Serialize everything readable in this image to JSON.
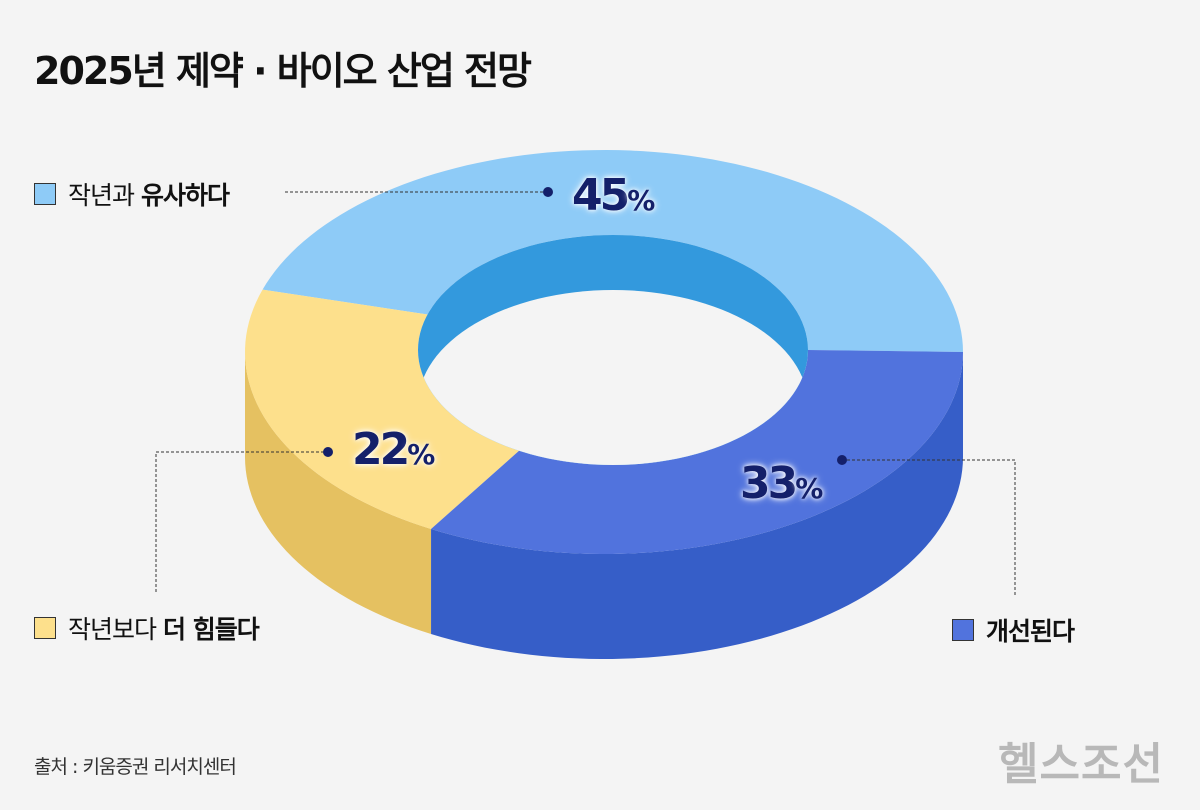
{
  "title": "2025년 제약 · 바이오 산업 전망",
  "source": "출처 : 키움증권 리서치센터",
  "logo_text": "헬스조선",
  "chart_data": {
    "type": "pie",
    "style": "3d-donut",
    "title": "2025년 제약 · 바이오 산업 전망",
    "slices": [
      {
        "label_plain": "작년과",
        "label_bold": "유사하다",
        "value": 45,
        "display": "45",
        "color": "#8ecbf7",
        "side_color": "#5aa8e0"
      },
      {
        "label_plain": "작년보다",
        "label_bold": "더 힘들다",
        "value": 22,
        "display": "22",
        "color": "#fde08c",
        "side_color": "#e5c161"
      },
      {
        "label_plain": "",
        "label_bold": "개선된다",
        "value": 33,
        "display": "33",
        "color": "#5173dd",
        "side_color": "#365ec8"
      }
    ],
    "percent_sign": "%",
    "inner_wall_color": "#3399dd"
  }
}
